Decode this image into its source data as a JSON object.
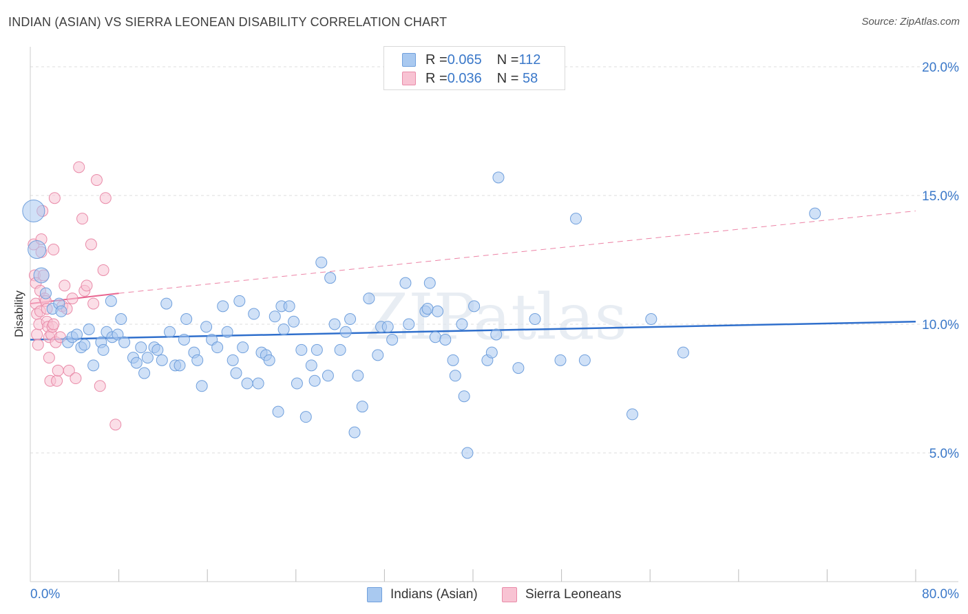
{
  "title": "INDIAN (ASIAN) VS SIERRA LEONEAN DISABILITY CORRELATION CHART",
  "source": "Source: ZipAtlas.com",
  "watermark": "ZIPatlas",
  "colors": {
    "blue_fill": "#a9c9f0",
    "blue_stroke": "#6f9fdc",
    "blue_line": "#2f6fcc",
    "pink_fill": "#f8c3d3",
    "pink_stroke": "#e98aa8",
    "pink_line": "#e8648f",
    "axis_text": "#3a78c9",
    "grid": "#dddddd"
  },
  "legend": {
    "rows": [
      {
        "r_label": "R = ",
        "r_value": "0.065",
        "n_label": "N = ",
        "n_value": "112"
      },
      {
        "r_label": "R = ",
        "r_value": "0.036",
        "n_label": "N = ",
        "n_value": " 58"
      }
    ]
  },
  "bottom_legend": {
    "series1": "Indians (Asian)",
    "series2": "Sierra Leoneans"
  },
  "chart_data": {
    "type": "scatter",
    "title": "INDIAN (ASIAN) VS SIERRA LEONEAN DISABILITY CORRELATION CHART",
    "xlabel": "",
    "ylabel": "Disability",
    "xlim": [
      0,
      80
    ],
    "ylim": [
      0,
      21
    ],
    "x_tick_labels": [
      "0.0%",
      "80.0%"
    ],
    "y_ticks": [
      5,
      10,
      15,
      20
    ],
    "y_tick_labels": [
      "5.0%",
      "10.0%",
      "15.0%",
      "20.0%"
    ],
    "grid": true,
    "legend_position": "top-center",
    "series": [
      {
        "name": "Indians (Asian)",
        "trend": {
          "x": [
            0,
            80
          ],
          "y": [
            9.4,
            10.1
          ]
        },
        "points": [
          [
            0.3,
            14.4
          ],
          [
            0.6,
            12.9
          ],
          [
            1.0,
            11.9
          ],
          [
            1.4,
            11.2
          ],
          [
            2.0,
            10.6
          ],
          [
            2.6,
            10.8
          ],
          [
            2.8,
            10.5
          ],
          [
            3.4,
            9.3
          ],
          [
            3.8,
            9.5
          ],
          [
            4.2,
            9.6
          ],
          [
            4.6,
            9.1
          ],
          [
            4.9,
            9.2
          ],
          [
            5.3,
            9.8
          ],
          [
            5.7,
            8.4
          ],
          [
            6.4,
            9.3
          ],
          [
            6.6,
            9.0
          ],
          [
            6.9,
            9.7
          ],
          [
            7.4,
            9.5
          ],
          [
            7.3,
            10.9
          ],
          [
            7.9,
            9.6
          ],
          [
            8.2,
            10.2
          ],
          [
            8.5,
            9.3
          ],
          [
            9.3,
            8.7
          ],
          [
            9.6,
            8.5
          ],
          [
            10.0,
            9.1
          ],
          [
            10.3,
            8.1
          ],
          [
            10.6,
            8.7
          ],
          [
            11.2,
            9.1
          ],
          [
            11.5,
            9.0
          ],
          [
            11.9,
            8.6
          ],
          [
            12.3,
            10.8
          ],
          [
            12.6,
            9.7
          ],
          [
            13.1,
            8.4
          ],
          [
            13.5,
            8.4
          ],
          [
            13.9,
            9.4
          ],
          [
            14.1,
            10.2
          ],
          [
            14.8,
            8.9
          ],
          [
            15.1,
            8.6
          ],
          [
            15.5,
            7.6
          ],
          [
            15.9,
            9.9
          ],
          [
            16.4,
            9.4
          ],
          [
            16.9,
            9.1
          ],
          [
            17.4,
            10.7
          ],
          [
            17.8,
            9.7
          ],
          [
            18.3,
            8.6
          ],
          [
            18.6,
            8.1
          ],
          [
            18.9,
            10.9
          ],
          [
            19.2,
            9.1
          ],
          [
            19.6,
            7.7
          ],
          [
            20.2,
            10.4
          ],
          [
            20.6,
            7.7
          ],
          [
            20.9,
            8.9
          ],
          [
            21.3,
            8.8
          ],
          [
            21.6,
            8.6
          ],
          [
            22.1,
            10.3
          ],
          [
            22.4,
            6.6
          ],
          [
            22.7,
            10.7
          ],
          [
            22.9,
            9.8
          ],
          [
            23.4,
            10.7
          ],
          [
            23.8,
            10.1
          ],
          [
            24.1,
            7.7
          ],
          [
            24.5,
            9.0
          ],
          [
            24.9,
            6.4
          ],
          [
            25.4,
            8.4
          ],
          [
            25.7,
            7.8
          ],
          [
            25.9,
            9.0
          ],
          [
            26.3,
            12.4
          ],
          [
            26.9,
            8.0
          ],
          [
            27.1,
            11.8
          ],
          [
            27.5,
            10.0
          ],
          [
            28.0,
            9.0
          ],
          [
            28.5,
            9.7
          ],
          [
            28.9,
            10.2
          ],
          [
            29.3,
            5.8
          ],
          [
            29.6,
            8.0
          ],
          [
            30.0,
            6.8
          ],
          [
            30.6,
            11.0
          ],
          [
            31.4,
            8.8
          ],
          [
            31.7,
            9.9
          ],
          [
            32.3,
            9.9
          ],
          [
            32.7,
            9.4
          ],
          [
            33.9,
            11.6
          ],
          [
            34.2,
            10.0
          ],
          [
            35.7,
            10.5
          ],
          [
            35.9,
            10.6
          ],
          [
            36.1,
            11.6
          ],
          [
            36.6,
            9.5
          ],
          [
            36.8,
            10.5
          ],
          [
            37.5,
            9.4
          ],
          [
            38.2,
            8.6
          ],
          [
            38.4,
            8.0
          ],
          [
            39.0,
            10.0
          ],
          [
            39.2,
            7.2
          ],
          [
            39.5,
            5.0
          ],
          [
            40.1,
            10.7
          ],
          [
            41.3,
            8.6
          ],
          [
            41.7,
            8.9
          ],
          [
            42.1,
            9.6
          ],
          [
            42.3,
            15.7
          ],
          [
            44.1,
            8.3
          ],
          [
            45.6,
            10.2
          ],
          [
            47.9,
            8.6
          ],
          [
            49.3,
            14.1
          ],
          [
            50.1,
            8.6
          ],
          [
            54.4,
            6.5
          ],
          [
            56.1,
            10.2
          ],
          [
            59.0,
            8.9
          ],
          [
            70.9,
            14.3
          ]
        ]
      },
      {
        "name": "Sierra Leoneans",
        "trend": {
          "x": [
            0,
            8
          ],
          "y": [
            10.8,
            11.2
          ],
          "dashed_x": [
            8,
            80
          ],
          "dashed_y": [
            11.2,
            14.4
          ]
        },
        "points": [
          [
            0.3,
            13.1
          ],
          [
            0.4,
            11.9
          ],
          [
            0.5,
            11.6
          ],
          [
            0.5,
            10.8
          ],
          [
            0.6,
            10.4
          ],
          [
            0.6,
            9.6
          ],
          [
            0.7,
            9.2
          ],
          [
            0.8,
            10.0
          ],
          [
            0.9,
            10.5
          ],
          [
            0.9,
            11.3
          ],
          [
            1.0,
            12.8
          ],
          [
            1.0,
            13.3
          ],
          [
            1.1,
            14.4
          ],
          [
            1.2,
            11.9
          ],
          [
            1.3,
            11.0
          ],
          [
            1.4,
            10.9
          ],
          [
            1.5,
            10.6
          ],
          [
            1.5,
            10.1
          ],
          [
            1.6,
            9.9
          ],
          [
            1.7,
            9.5
          ],
          [
            1.7,
            8.7
          ],
          [
            1.8,
            7.8
          ],
          [
            1.9,
            9.6
          ],
          [
            2.0,
            9.9
          ],
          [
            2.1,
            10.0
          ],
          [
            2.1,
            12.9
          ],
          [
            2.2,
            14.9
          ],
          [
            2.3,
            9.3
          ],
          [
            2.4,
            7.8
          ],
          [
            2.5,
            8.2
          ],
          [
            2.7,
            9.5
          ],
          [
            2.9,
            10.7
          ],
          [
            3.1,
            11.5
          ],
          [
            3.3,
            10.6
          ],
          [
            3.5,
            8.2
          ],
          [
            3.8,
            11.0
          ],
          [
            4.1,
            7.9
          ],
          [
            4.4,
            16.1
          ],
          [
            4.7,
            14.1
          ],
          [
            4.9,
            11.3
          ],
          [
            5.1,
            11.5
          ],
          [
            5.5,
            13.1
          ],
          [
            5.7,
            10.8
          ],
          [
            6.0,
            15.6
          ],
          [
            6.3,
            7.6
          ],
          [
            6.6,
            12.1
          ],
          [
            6.8,
            14.9
          ],
          [
            7.7,
            6.1
          ]
        ]
      }
    ]
  }
}
